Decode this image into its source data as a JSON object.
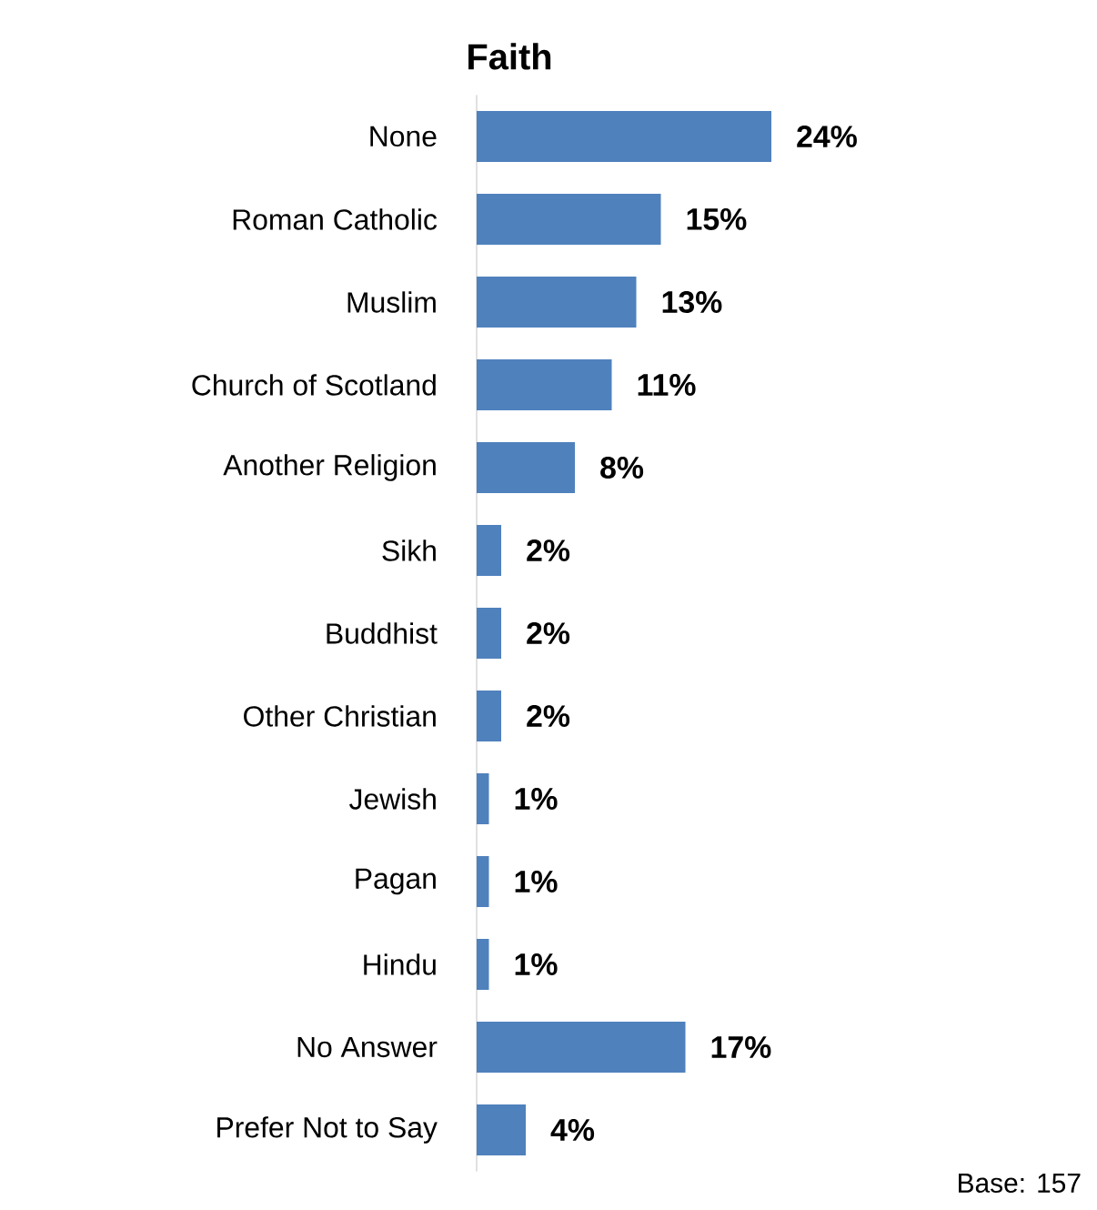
{
  "chart_data": {
    "type": "bar",
    "orientation": "horizontal",
    "title": "Faith",
    "categories": [
      "None",
      "Roman Catholic",
      "Muslim",
      "Church of Scotland",
      "Another Religion",
      "Sikh",
      "Buddhist",
      "Other Christian",
      "Jewish",
      "Pagan",
      "Hindu",
      "No Answer",
      "Prefer Not to Say"
    ],
    "values": [
      24,
      15,
      13,
      11,
      8,
      2,
      2,
      2,
      1,
      1,
      1,
      17,
      4
    ],
    "value_labels": [
      "24%",
      "15%",
      "13%",
      "11%",
      "8%",
      "2%",
      "2%",
      "2%",
      "1%",
      "1%",
      "1%",
      "17%",
      "4%"
    ],
    "color": "#4f81bd",
    "annotations": [
      "Base: 157"
    ]
  }
}
